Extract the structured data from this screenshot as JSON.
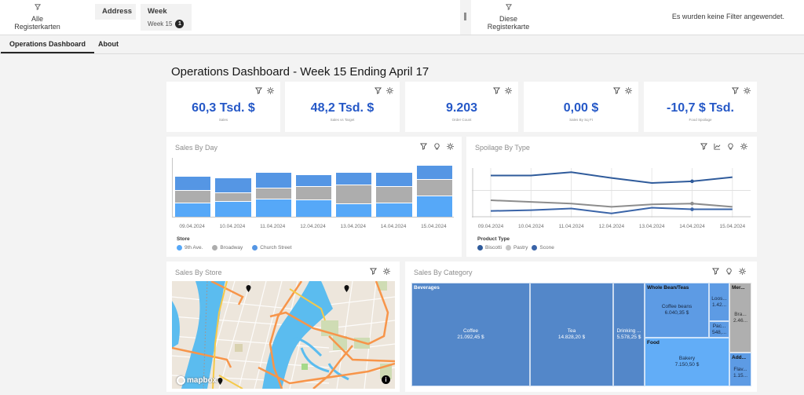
{
  "filters": {
    "all_tabs_label": "Alle Registerkarten",
    "this_tab_label": "Diese Registerkarte",
    "no_filters_text": "Es wurden keine Filter angewendet.",
    "chips": [
      {
        "title": "Address",
        "value": ""
      },
      {
        "title": "Week",
        "value": "Week 15",
        "badge": "1"
      }
    ]
  },
  "tabs": [
    {
      "label": "Operations Dashboard",
      "active": true
    },
    {
      "label": "About",
      "active": false
    }
  ],
  "page": {
    "title": "Operations Dashboard - Week 15 Ending April 17"
  },
  "kpis": [
    {
      "value": "60,3 Tsd. $",
      "label": "Sales"
    },
    {
      "value": "48,2 Tsd. $",
      "label": "Sales vs Target"
    },
    {
      "value": "9.203",
      "label": "Order Count"
    },
    {
      "value": "0,00 $",
      "label": "Sales By Sq Ft"
    },
    {
      "value": "-10,7 $ Tsd.",
      "label": "Food Spoilage"
    }
  ],
  "sales_by_day": {
    "title": "Sales By Day",
    "legend_title": "Store",
    "legend": [
      "9th Ave.",
      "Broadway",
      "Church Street"
    ],
    "colors": [
      "#56a8f8",
      "#adadad",
      "#5596e4"
    ]
  },
  "spoilage_by_type": {
    "title": "Spoilage By Type",
    "legend_title": "Product Type",
    "legend": [
      "Biscotti",
      "Pastry",
      "Scone"
    ],
    "colors": [
      "#2f5b9b",
      "#8d8d8d",
      "#3a64a8"
    ]
  },
  "sales_by_store": {
    "title": "Sales By Store",
    "map_attribution": "mapbox",
    "info_icon": "i"
  },
  "sales_by_category": {
    "title": "Sales By Category",
    "groups": {
      "beverages": "Beverages",
      "whole_bean": "Whole Bean/Teas",
      "food": "Food",
      "merch": "Mer...",
      "addons": "Add..."
    },
    "cells": {
      "coffee": {
        "name": "Coffee",
        "value": "21.092,45 $"
      },
      "tea": {
        "name": "Tea",
        "value": "14.828,20 $"
      },
      "drinking": {
        "name": "Drinking ...",
        "value": "5.578,25 $"
      },
      "coffee_beans": {
        "name": "Coffee beans",
        "value": "6.040,35 $"
      },
      "loose": {
        "name": "Loos...",
        "value": "1.42..."
      },
      "packaged": {
        "name": "Pac...",
        "value": "548,..."
      },
      "bakery": {
        "name": "Bakery",
        "value": "7.150,50 $"
      },
      "branded": {
        "name": "Bra...",
        "value": "2.46..."
      },
      "flavours": {
        "name": "Flav...",
        "value": "1.15..."
      }
    }
  },
  "chart_data": [
    {
      "type": "bar",
      "title": "Sales By Day",
      "stacked": true,
      "categories": [
        "09.04.2024",
        "10.04.2024",
        "11.04.2024",
        "12.04.2024",
        "13.04.2024",
        "14.04.2024",
        "15.04.2024"
      ],
      "series": [
        {
          "name": "9th Ave.",
          "values": [
            19,
            21,
            24,
            23,
            18,
            19,
            28
          ]
        },
        {
          "name": "Broadway",
          "values": [
            17,
            12,
            15,
            18,
            25,
            22,
            23
          ]
        },
        {
          "name": "Church Street",
          "values": [
            19,
            20,
            21,
            16,
            17,
            19,
            18
          ]
        }
      ],
      "xlabel": "",
      "ylabel": "",
      "legend_title": "Store",
      "legend_position": "bottom",
      "grid": false
    },
    {
      "type": "line",
      "title": "Spoilage By Type",
      "categories": [
        "09.04.2024",
        "10.04.2024",
        "11.04.2024",
        "12.04.2024",
        "13.04.2024",
        "14.04.2024",
        "15.04.2024"
      ],
      "series": [
        {
          "name": "Biscotti",
          "values": [
            50,
            50,
            54,
            47,
            41,
            43,
            48
          ]
        },
        {
          "name": "Pastry",
          "values": [
            20,
            18,
            16,
            12,
            15,
            16,
            12
          ]
        },
        {
          "name": "Scone",
          "values": [
            7,
            8,
            10,
            4,
            11,
            9,
            9
          ]
        }
      ],
      "xlabel": "",
      "ylabel": "",
      "legend_title": "Product Type",
      "legend_position": "bottom",
      "grid": true
    },
    {
      "type": "treemap",
      "title": "Sales By Category",
      "nodes": [
        {
          "group": "Beverages",
          "name": "Coffee",
          "value": 21092.45
        },
        {
          "group": "Beverages",
          "name": "Tea",
          "value": 14828.2
        },
        {
          "group": "Beverages",
          "name": "Drinking ...",
          "value": 5578.25
        },
        {
          "group": "Whole Bean/Teas",
          "name": "Coffee beans",
          "value": 6040.35
        },
        {
          "group": "Whole Bean/Teas",
          "name": "Loos...",
          "value": 1420
        },
        {
          "group": "Whole Bean/Teas",
          "name": "Pac...",
          "value": 548
        },
        {
          "group": "Food",
          "name": "Bakery",
          "value": 7150.5
        },
        {
          "group": "Mer...",
          "name": "Bra...",
          "value": 2460
        },
        {
          "group": "Add...",
          "name": "Flav...",
          "value": 1150
        }
      ]
    }
  ]
}
